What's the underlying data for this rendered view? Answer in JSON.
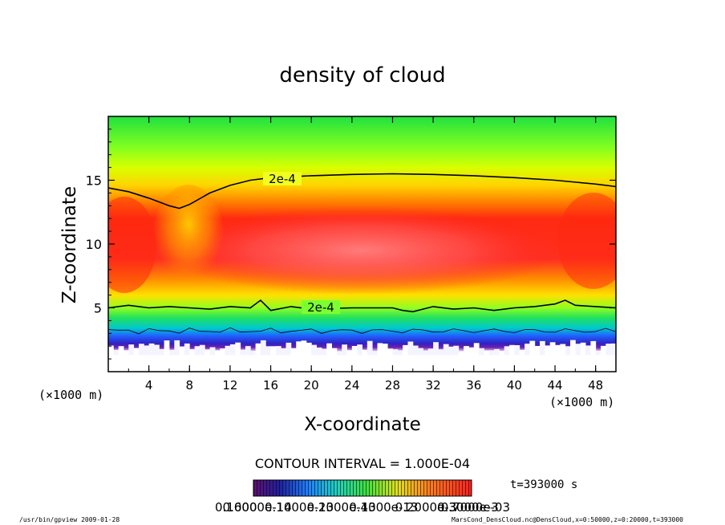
{
  "chart_data": {
    "type": "heatmap",
    "title": "density of cloud",
    "xlabel": "X-coordinate",
    "ylabel": "Z-coordinate",
    "x_unit_label": "(×1000 m)",
    "y_unit_label": "(×1000 m)",
    "xlim": [
      0,
      50
    ],
    "ylim": [
      0,
      20
    ],
    "x_ticks": [
      "4",
      "8",
      "12",
      "16",
      "20",
      "24",
      "28",
      "32",
      "36",
      "40",
      "44",
      "48"
    ],
    "y_ticks": [
      "5",
      "10",
      "15"
    ],
    "contour_label": "2e-4",
    "contour_interval_text": "CONTOUR INTERVAL = 1.000E-04",
    "time_text": "t=393000 s",
    "colorbar_labels": [
      "0.1000",
      "0.6000e-14",
      "0.1000e-13",
      "0.2000e-13",
      "0.4000e-13",
      "0.2000e-3",
      "0.3000e-3",
      "0.7000e-03"
    ],
    "footer_left": "/usr/bin/gpview  2009-01-28",
    "footer_right": "MarsCond_DensCloud.nc@DensCloud,x=0:50000,z=0:20000,t=393000",
    "upper_contour": {
      "x": [
        0,
        2,
        4,
        6,
        7,
        8,
        10,
        12,
        14,
        16,
        20,
        24,
        28,
        32,
        36,
        40,
        44,
        48,
        50
      ],
      "z": [
        14.4,
        14.1,
        13.6,
        13.0,
        12.8,
        13.1,
        14.0,
        14.6,
        15.0,
        15.2,
        15.35,
        15.45,
        15.5,
        15.45,
        15.35,
        15.2,
        15.0,
        14.7,
        14.5
      ]
    },
    "lower_contour": {
      "x": [
        0,
        2,
        4,
        6,
        8,
        10,
        12,
        14,
        15,
        16,
        18,
        20,
        24,
        28,
        29,
        30,
        32,
        34,
        36,
        38,
        40,
        42,
        44,
        45,
        46,
        48,
        50
      ],
      "z": [
        5.0,
        5.2,
        5.0,
        5.1,
        5.0,
        4.9,
        5.1,
        5.0,
        5.6,
        4.8,
        5.1,
        4.9,
        5.0,
        5.0,
        4.8,
        4.7,
        5.1,
        4.9,
        5.0,
        4.8,
        5.0,
        5.1,
        5.3,
        5.6,
        5.2,
        5.1,
        5.0
      ]
    }
  }
}
